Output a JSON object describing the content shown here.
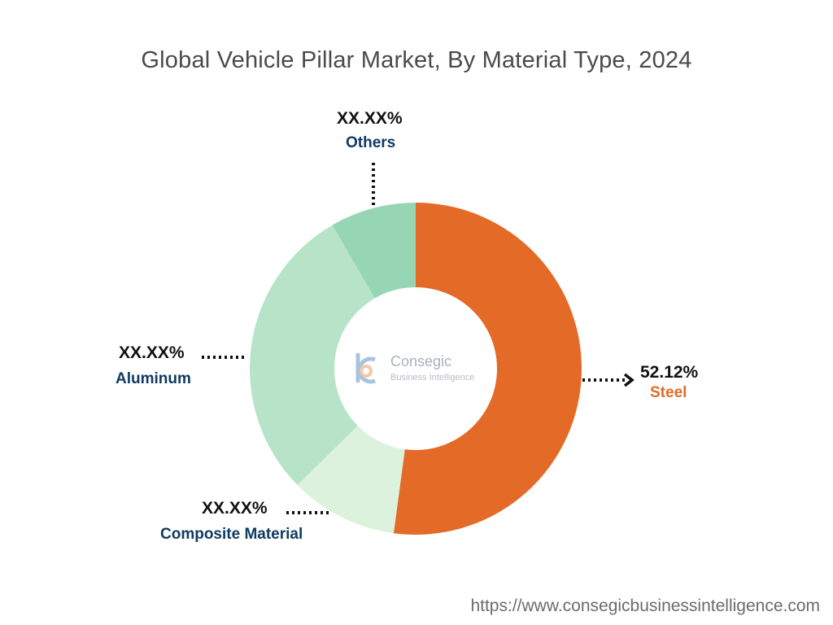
{
  "chart_data": {
    "type": "pie",
    "title": "Global Vehicle Pillar Market, By Material Type, 2024",
    "series": [
      {
        "name": "Steel",
        "value": 52.12,
        "label": "52.12%",
        "color": "#e36a27",
        "label_color": "#e36a27"
      },
      {
        "name": "Composite Material",
        "value": 10.5,
        "label": "XX.XX%",
        "color": "#dcf2dc",
        "label_color": "#0f3b63"
      },
      {
        "name": "Aluminum",
        "value": 29.0,
        "label": "XX.XX%",
        "color": "#b7e4c9",
        "label_color": "#0f3b63"
      },
      {
        "name": "Others",
        "value": 8.38,
        "label": "XX.XX%",
        "color": "#96d6b4",
        "label_color": "#0f3b63"
      }
    ]
  },
  "watermark": {
    "name": "Consegic",
    "subtitle": "Business Intelligence"
  },
  "footer": {
    "url": "https://www.consegicbusinessintelligence.com"
  }
}
